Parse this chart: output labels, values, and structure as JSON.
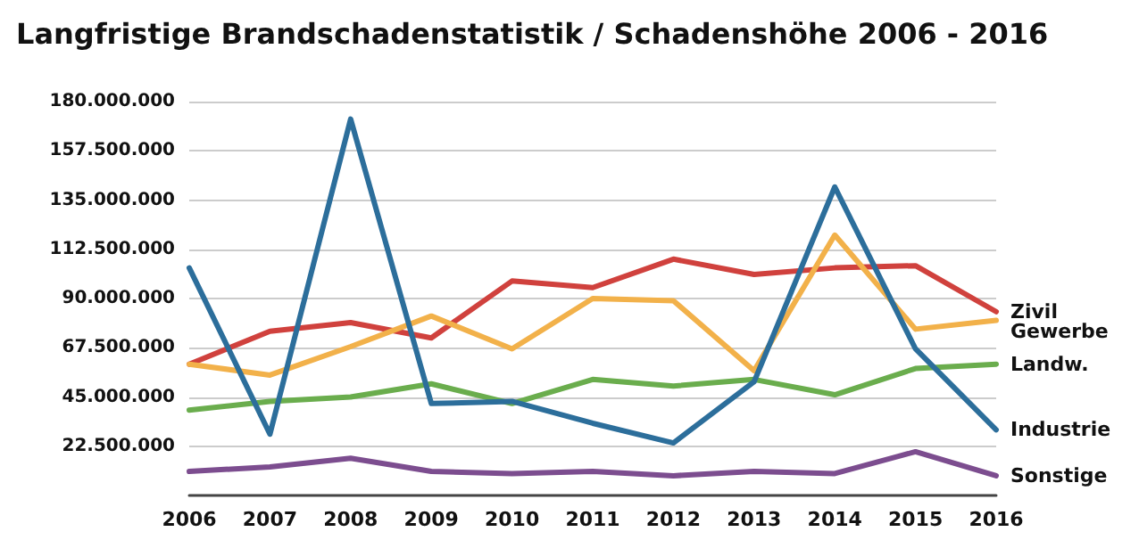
{
  "chart_data": {
    "type": "line",
    "title": "Langfristige Brandschadenstatistik / Schadenshöhe 2006 - 2016",
    "categories": [
      "2006",
      "2007",
      "2008",
      "2009",
      "2010",
      "2011",
      "2012",
      "2013",
      "2014",
      "2015",
      "2016"
    ],
    "series": [
      {
        "name": "Zivil",
        "color": "#d0413d",
        "values": [
          60000000,
          75000000,
          79000000,
          72000000,
          98000000,
          95000000,
          108000000,
          101000000,
          104000000,
          105000000,
          84000000
        ]
      },
      {
        "name": "Gewerbe",
        "color": "#f2b14a",
        "values": [
          60000000,
          55000000,
          68000000,
          82000000,
          67000000,
          90000000,
          89000000,
          57000000,
          119000000,
          76000000,
          80000000
        ]
      },
      {
        "name": "Landw.",
        "color": "#6aad4d",
        "values": [
          39000000,
          43000000,
          45000000,
          51000000,
          42000000,
          53000000,
          50000000,
          53000000,
          46000000,
          58000000,
          60000000
        ]
      },
      {
        "name": "Industrie",
        "color": "#2c6e9b",
        "values": [
          104000000,
          28000000,
          172000000,
          42000000,
          43000000,
          33000000,
          24000000,
          52000000,
          141000000,
          67000000,
          30000000
        ]
      },
      {
        "name": "Sonstige",
        "color": "#7c4d8f",
        "values": [
          11000000,
          13000000,
          17000000,
          11000000,
          10000000,
          11000000,
          9000000,
          11000000,
          10000000,
          20000000,
          9000000
        ]
      }
    ],
    "ylim": [
      0,
      180000000
    ],
    "yticks": [
      {
        "value": 22500000,
        "label": "22.500.000"
      },
      {
        "value": 45000000,
        "label": "45.000.000"
      },
      {
        "value": 67500000,
        "label": "67.500.000"
      },
      {
        "value": 90000000,
        "label": "90.000.000"
      },
      {
        "value": 112500000,
        "label": "112.500.000"
      },
      {
        "value": 135000000,
        "label": "135.000.000"
      },
      {
        "value": 157500000,
        "label": "157.500.000"
      },
      {
        "value": 180000000,
        "label": "180.000.000"
      }
    ],
    "grid": "y",
    "legend": false,
    "marker": "none",
    "line_style": "solid"
  }
}
